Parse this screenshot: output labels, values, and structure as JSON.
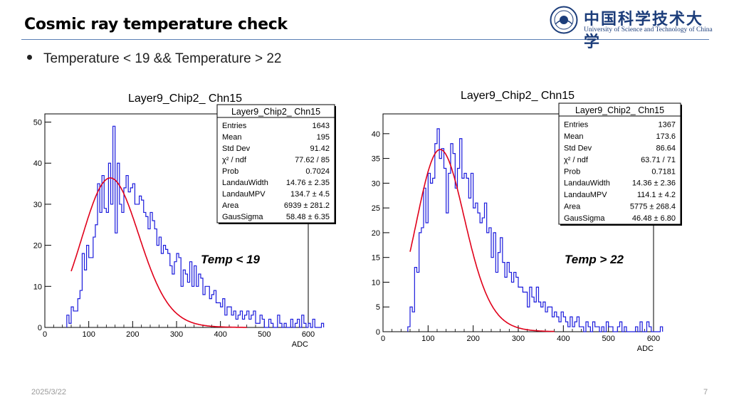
{
  "slide": {
    "title": "Cosmic ray temperature check",
    "bullet": "Temperature < 19  && Temperature > 22",
    "date": "2025/3/22",
    "page_number": "7"
  },
  "logo": {
    "cn": "中国科学技术大学",
    "en": "University of Science and Technology of China",
    "color": "#1c3d7a"
  },
  "chart_data": [
    {
      "type": "histogram",
      "title": "Layer9_Chip2_ Chn15",
      "xlabel": "ADC",
      "ylabel": "",
      "xlim": [
        0,
        600
      ],
      "ylim": [
        0,
        52
      ],
      "xticks": [
        0,
        100,
        200,
        300,
        400,
        500,
        600
      ],
      "yticks": [
        0,
        10,
        20,
        30,
        40,
        50
      ],
      "annotation": "Temp < 19",
      "hist_color": "#1a1adc",
      "fit_color": "#e0001a",
      "fit": {
        "function": "Landau ⊗ Gaus",
        "mpv": 134.7,
        "width": 14.76,
        "area": 6939,
        "gaus_sigma": 58.48,
        "x_range": [
          60,
          460
        ]
      },
      "stats_box": {
        "title": "Layer9_Chip2_ Chn15",
        "rows": [
          {
            "label": "Entries",
            "value": "1643"
          },
          {
            "label": "Mean",
            "value": "195"
          },
          {
            "label": "Std Dev",
            "value": "91.42"
          },
          {
            "label": "χ² / ndf",
            "value": "77.62 / 85"
          },
          {
            "label": "Prob",
            "value": "0.7024"
          },
          {
            "label": "LandauWidth",
            "value": "14.76 ± 2.35"
          },
          {
            "label": "LandauMPV",
            "value": "134.7 ± 4.5"
          },
          {
            "label": "Area",
            "value": "6939 ± 281.2"
          },
          {
            "label": "GausSigma",
            "value": "58.48 ± 6.35"
          }
        ]
      },
      "bins": {
        "start": 50,
        "width": 5,
        "counts": [
          3,
          1,
          5,
          4,
          4,
          7,
          9,
          18,
          14,
          20,
          17,
          17,
          22,
          25,
          35,
          28,
          37,
          29,
          28,
          40,
          30,
          49,
          23,
          40,
          30,
          28,
          34,
          37,
          33,
          34,
          35,
          30,
          30,
          32,
          31,
          28,
          27,
          24,
          28,
          26,
          24,
          20,
          22,
          18,
          20,
          19,
          18,
          15,
          13,
          16,
          18,
          17,
          10,
          14,
          13,
          11,
          16,
          10,
          15,
          10,
          13,
          12,
          8,
          10,
          10,
          7,
          8,
          9,
          6,
          6,
          5,
          7,
          3,
          5,
          5,
          3,
          4,
          2,
          3,
          4,
          2,
          3,
          4,
          2,
          3,
          4,
          1,
          1,
          3,
          2,
          0,
          0,
          2,
          1,
          0,
          0,
          3,
          1,
          0,
          1,
          0,
          0,
          2,
          0,
          1,
          2,
          0,
          3,
          1,
          0,
          1,
          0,
          2,
          0,
          0,
          0,
          1
        ]
      }
    },
    {
      "type": "histogram",
      "title": "Layer9_Chip2_ Chn15",
      "xlabel": "ADC",
      "ylabel": "",
      "xlim": [
        0,
        600
      ],
      "ylim": [
        0,
        44
      ],
      "xticks": [
        0,
        100,
        200,
        300,
        400,
        500,
        600
      ],
      "yticks": [
        0,
        5,
        10,
        15,
        20,
        25,
        30,
        35,
        40
      ],
      "annotation": "Temp > 22",
      "hist_color": "#1a1adc",
      "fit_color": "#e0001a",
      "fit": {
        "function": "Landau ⊗ Gaus",
        "mpv": 114.1,
        "width": 14.36,
        "area": 5775,
        "gaus_sigma": 46.48,
        "x_range": [
          60,
          380
        ]
      },
      "stats_box": {
        "title": "Layer9_Chip2_ Chn15",
        "rows": [
          {
            "label": "Entries",
            "value": "1367"
          },
          {
            "label": "Mean",
            "value": "173.6"
          },
          {
            "label": "Std Dev",
            "value": "86.64"
          },
          {
            "label": "χ² / ndf",
            "value": "63.71 / 71"
          },
          {
            "label": "Prob",
            "value": "0.7181"
          },
          {
            "label": "LandauWidth",
            "value": "14.36 ± 2.36"
          },
          {
            "label": "LandauMPV",
            "value": "114.1 ± 4.2"
          },
          {
            "label": "Area",
            "value": "5775 ± 268.4"
          },
          {
            "label": "GausSigma",
            "value": "46.48 ± 6.80"
          }
        ]
      },
      "bins": {
        "start": 55,
        "width": 5,
        "counts": [
          1,
          5,
          4,
          13,
          12,
          20,
          21,
          29,
          22,
          32,
          30,
          31,
          38,
          41,
          35,
          37,
          33,
          24,
          32,
          38,
          36,
          29,
          33,
          39,
          31,
          32,
          31,
          27,
          32,
          25,
          26,
          24,
          22,
          23,
          26,
          20,
          21,
          15,
          20,
          12,
          16,
          19,
          14,
          11,
          14,
          12,
          10,
          12,
          11,
          9,
          9,
          8,
          8,
          5,
          9,
          7,
          6,
          9,
          6,
          5,
          6,
          4,
          5,
          5,
          3,
          4,
          3,
          2,
          4,
          3,
          2,
          1,
          3,
          1,
          2,
          3,
          1,
          1,
          0,
          2,
          1,
          0,
          2,
          1,
          1,
          0,
          1,
          0,
          2,
          1,
          1,
          0,
          0,
          1,
          2,
          0,
          1,
          0,
          0,
          0,
          0,
          1,
          0,
          2,
          0,
          0,
          2,
          1,
          0,
          0,
          0,
          0,
          1
        ]
      }
    }
  ]
}
